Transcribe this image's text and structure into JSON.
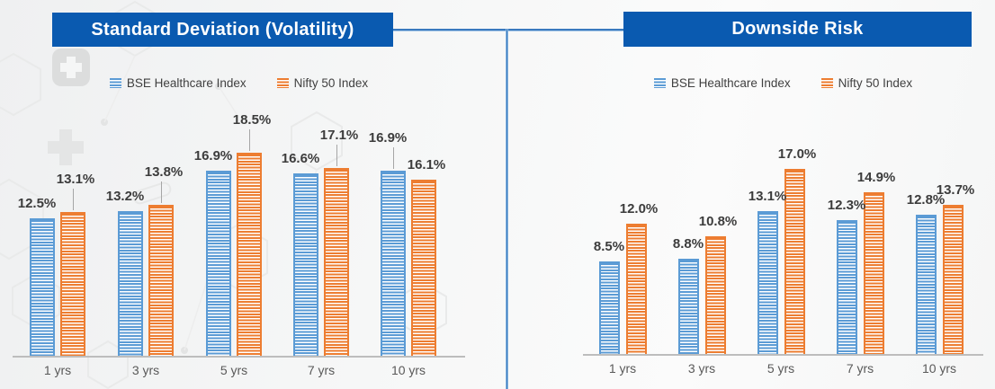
{
  "colors": {
    "series1": "#5B9BD5",
    "series2": "#ED7D31",
    "header_bg": "#0A5AB0",
    "header_text": "#FFFFFF",
    "connector": "#3A7ABF",
    "baseline": "#BDBDBD",
    "label_text": "#3C3C3C",
    "category_text": "#595959",
    "legend_text": "#404040",
    "leader": "#A6A6A6"
  },
  "background": {
    "icons": [
      "medical-cross-badge-icon",
      "medical-cross-icon",
      "hexagon-pattern",
      "molecule-dots"
    ]
  },
  "chart_data": [
    {
      "type": "bar",
      "title": "Standard Deviation (Volatility)",
      "categories": [
        "1 yrs",
        "3 yrs",
        "5 yrs",
        "7 yrs",
        "10 yrs"
      ],
      "series": [
        {
          "name": "BSE Healthcare Index",
          "color": "#5B9BD5",
          "values": [
            12.5,
            13.2,
            16.9,
            16.6,
            16.9
          ],
          "labels": [
            "12.5%",
            "13.2%",
            "16.9%",
            "16.6%",
            "16.9%"
          ],
          "label_raised": [
            false,
            false,
            false,
            false,
            true
          ]
        },
        {
          "name": "Nifty 50 Index",
          "color": "#ED7D31",
          "values": [
            13.1,
            13.8,
            18.5,
            17.1,
            16.1
          ],
          "labels": [
            "13.1%",
            "13.8%",
            "18.5%",
            "17.1%",
            "16.1%"
          ],
          "label_raised": [
            true,
            true,
            true,
            true,
            false
          ]
        }
      ],
      "unit": "%",
      "ylim": [
        0,
        20
      ],
      "grid": false,
      "legend_position": "top"
    },
    {
      "type": "bar",
      "title": "Downside Risk",
      "categories": [
        "1 yrs",
        "3 yrs",
        "5 yrs",
        "7 yrs",
        "10 yrs"
      ],
      "series": [
        {
          "name": "BSE Healthcare Index",
          "color": "#5B9BD5",
          "values": [
            8.5,
            8.8,
            13.1,
            12.3,
            12.8
          ],
          "labels": [
            "8.5%",
            "8.8%",
            "13.1%",
            "12.3%",
            "12.8%"
          ],
          "label_raised": [
            false,
            false,
            false,
            false,
            false
          ]
        },
        {
          "name": "Nifty 50 Index",
          "color": "#ED7D31",
          "values": [
            12.0,
            10.8,
            17.0,
            14.9,
            13.7
          ],
          "labels": [
            "12.0%",
            "10.8%",
            "17.0%",
            "14.9%",
            "13.7%"
          ],
          "label_raised": [
            false,
            false,
            false,
            false,
            false
          ]
        }
      ],
      "unit": "%",
      "ylim": [
        0,
        20
      ],
      "grid": false,
      "legend_position": "top"
    }
  ]
}
